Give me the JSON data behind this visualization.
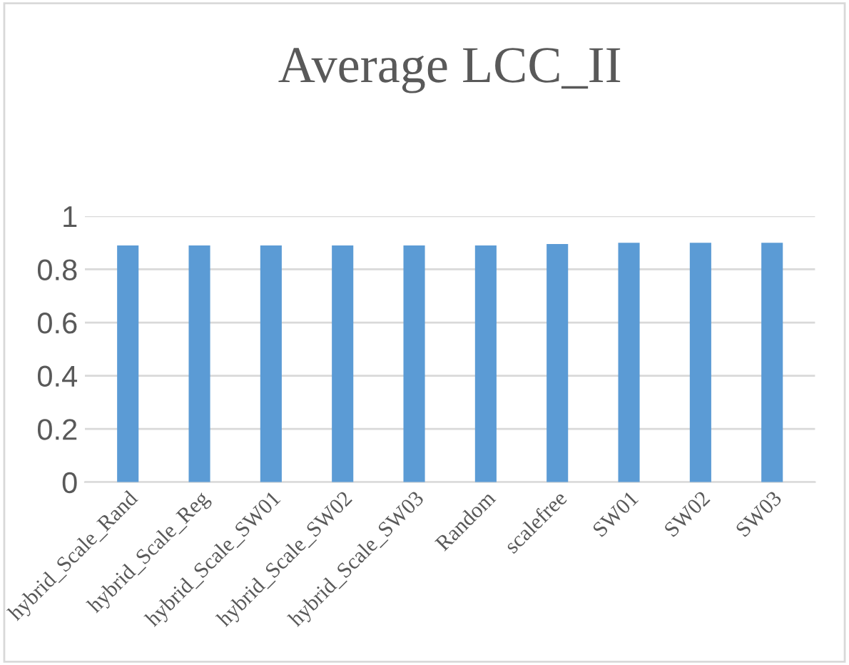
{
  "chart_data": {
    "type": "bar",
    "title": "Average LCC_II",
    "categories": [
      "hybrid_Scale_Rand",
      "hybrid_Scale_Reg",
      "hybrid_Scale_SW01",
      "hybrid_Scale_SW02",
      "hybrid_Scale_SW03",
      "Random",
      "scalefree",
      "SW01",
      "SW02",
      "SW03"
    ],
    "values": [
      0.89,
      0.89,
      0.89,
      0.89,
      0.89,
      0.89,
      0.895,
      0.9,
      0.9,
      0.9
    ],
    "color": "#5b9bd5",
    "ylim": [
      0,
      1
    ],
    "yticks": [
      0,
      0.2,
      0.4,
      0.6,
      0.8,
      1
    ],
    "grid": "y"
  }
}
